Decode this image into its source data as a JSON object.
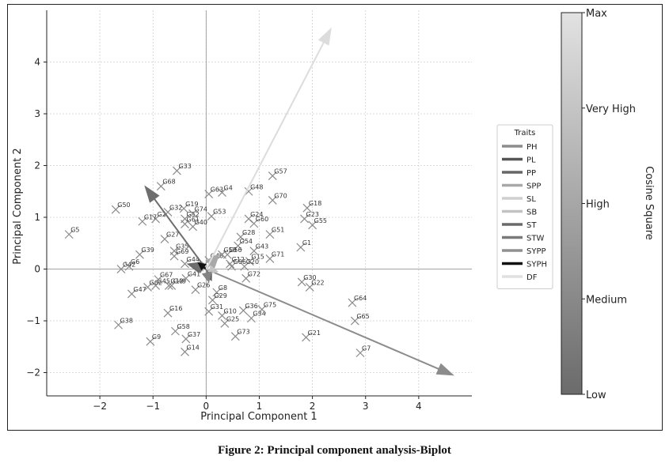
{
  "caption": "Figure 2: Principal component analysis-Biplot",
  "chart_data": {
    "type": "scatter",
    "title": "",
    "xlabel": "Principal Component 1",
    "ylabel": "Principal Component 2",
    "xlim": [
      -3,
      5
    ],
    "ylim": [
      -2.45,
      5
    ],
    "xticks": [
      -2,
      -1,
      0,
      1,
      2,
      3,
      4
    ],
    "yticks": [
      -2,
      -1,
      0,
      1,
      2,
      3,
      4
    ],
    "xtick_labels": [
      "−2",
      "−1",
      "0",
      "1",
      "2",
      "3",
      "4"
    ],
    "ytick_labels": [
      "−2",
      "−1",
      "0",
      "1",
      "2",
      "3",
      "4"
    ],
    "grid": true,
    "points": [
      {
        "label": "G1",
        "x": 1.78,
        "y": 0.42
      },
      {
        "label": "G2",
        "x": -0.95,
        "y": 0.97
      },
      {
        "label": "G4",
        "x": 0.3,
        "y": 1.48
      },
      {
        "label": "G5",
        "x": -2.58,
        "y": 0.67
      },
      {
        "label": "G6",
        "x": -1.45,
        "y": 0.05
      },
      {
        "label": "G7",
        "x": 2.9,
        "y": -1.62
      },
      {
        "label": "G8",
        "x": 0.2,
        "y": -0.45
      },
      {
        "label": "G9",
        "x": -1.05,
        "y": -1.4
      },
      {
        "label": "G10",
        "x": 0.3,
        "y": -0.9
      },
      {
        "label": "G12",
        "x": 0.45,
        "y": 0.1
      },
      {
        "label": "G13",
        "x": -0.7,
        "y": -0.32
      },
      {
        "label": "G14",
        "x": -0.4,
        "y": -1.6
      },
      {
        "label": "G15",
        "x": 0.82,
        "y": 0.15
      },
      {
        "label": "G16",
        "x": -0.72,
        "y": -0.85
      },
      {
        "label": "G17",
        "x": -1.2,
        "y": 0.92
      },
      {
        "label": "G18",
        "x": 1.9,
        "y": 1.18
      },
      {
        "label": "G19",
        "x": -0.42,
        "y": 1.17
      },
      {
        "label": "G20",
        "x": 0.72,
        "y": 0.05
      },
      {
        "label": "G21",
        "x": 1.88,
        "y": -1.32
      },
      {
        "label": "G22",
        "x": 1.95,
        "y": -0.35
      },
      {
        "label": "G23",
        "x": 1.85,
        "y": 0.97
      },
      {
        "label": "G24",
        "x": 0.8,
        "y": 0.97
      },
      {
        "label": "G25",
        "x": 0.35,
        "y": -1.05
      },
      {
        "label": "G26",
        "x": -0.2,
        "y": -0.4
      },
      {
        "label": "G27",
        "x": -0.78,
        "y": 0.58
      },
      {
        "label": "G28",
        "x": 0.65,
        "y": 0.62
      },
      {
        "label": "G29",
        "x": 0.12,
        "y": -0.6
      },
      {
        "label": "G30",
        "x": 1.8,
        "y": -0.25
      },
      {
        "label": "G31",
        "x": 0.05,
        "y": -0.82
      },
      {
        "label": "G32",
        "x": -0.72,
        "y": 1.1
      },
      {
        "label": "G33",
        "x": -0.55,
        "y": 1.9
      },
      {
        "label": "G34",
        "x": 0.85,
        "y": -0.95
      },
      {
        "label": "G35",
        "x": -0.6,
        "y": 0.35
      },
      {
        "label": "G36",
        "x": 0.7,
        "y": -0.8
      },
      {
        "label": "G37",
        "x": -0.38,
        "y": -1.35
      },
      {
        "label": "G38",
        "x": -1.65,
        "y": -1.08
      },
      {
        "label": "G39",
        "x": -1.25,
        "y": 0.28
      },
      {
        "label": "G40",
        "x": -0.25,
        "y": 0.82
      },
      {
        "label": "G41",
        "x": -0.38,
        "y": -0.18
      },
      {
        "label": "G42",
        "x": -1.6,
        "y": 0.0
      },
      {
        "label": "G43",
        "x": 0.9,
        "y": 0.35
      },
      {
        "label": "G44",
        "x": -0.4,
        "y": 0.1
      },
      {
        "label": "G45",
        "x": -0.95,
        "y": -0.32
      },
      {
        "label": "G46",
        "x": 0.05,
        "y": 0.17
      },
      {
        "label": "G47",
        "x": -1.4,
        "y": -0.48
      },
      {
        "label": "G48",
        "x": 0.8,
        "y": 1.5
      },
      {
        "label": "G49",
        "x": -0.65,
        "y": -0.32
      },
      {
        "label": "G50",
        "x": -1.7,
        "y": 1.15
      },
      {
        "label": "G51",
        "x": 1.2,
        "y": 0.67
      },
      {
        "label": "G52",
        "x": -0.4,
        "y": 0.97
      },
      {
        "label": "G53",
        "x": 0.1,
        "y": 1.02
      },
      {
        "label": "G54",
        "x": 0.6,
        "y": 0.45
      },
      {
        "label": "G55",
        "x": 2.0,
        "y": 0.85
      },
      {
        "label": "G56",
        "x": 0.4,
        "y": 0.28
      },
      {
        "label": "G57",
        "x": 1.25,
        "y": 1.8
      },
      {
        "label": "G58",
        "x": -0.58,
        "y": -1.2
      },
      {
        "label": "G59",
        "x": 0.3,
        "y": 0.28
      },
      {
        "label": "G60",
        "x": 0.9,
        "y": 0.88
      },
      {
        "label": "G61",
        "x": -0.4,
        "y": 0.87
      },
      {
        "label": "G62",
        "x": -1.1,
        "y": -0.35
      },
      {
        "label": "G63",
        "x": 0.05,
        "y": 1.45
      },
      {
        "label": "G64",
        "x": 2.75,
        "y": -0.65
      },
      {
        "label": "G65",
        "x": 2.8,
        "y": -1.0
      },
      {
        "label": "G66",
        "x": 0.48,
        "y": 0.05
      },
      {
        "label": "G67",
        "x": -0.9,
        "y": -0.2
      },
      {
        "label": "G68",
        "x": -0.85,
        "y": 1.6
      },
      {
        "label": "G69",
        "x": -0.6,
        "y": 0.25
      },
      {
        "label": "G70",
        "x": 1.25,
        "y": 1.33
      },
      {
        "label": "G71",
        "x": 1.2,
        "y": 0.2
      },
      {
        "label": "G72",
        "x": 0.75,
        "y": -0.18
      },
      {
        "label": "G73",
        "x": 0.55,
        "y": -1.3
      },
      {
        "label": "G74",
        "x": -0.25,
        "y": 1.07
      },
      {
        "label": "G75",
        "x": 1.05,
        "y": -0.78
      }
    ],
    "vectors": [
      {
        "name": "PH",
        "x": 4.65,
        "y": -2.05,
        "color": "#8c8c8c"
      },
      {
        "name": "PL",
        "x": -1.15,
        "y": 1.6,
        "color": "#6e6e6e"
      },
      {
        "name": "PP",
        "x": 0.1,
        "y": -0.22,
        "color": "#5e5e5e"
      },
      {
        "name": "SPP",
        "x": 0.25,
        "y": 0.3,
        "color": "#a8a8a8"
      },
      {
        "name": "SL",
        "x": 0.22,
        "y": -0.05,
        "color": "#c4c4c4"
      },
      {
        "name": "SB",
        "x": -0.15,
        "y": 0.05,
        "color": "#bbbbbb"
      },
      {
        "name": "ST",
        "x": -0.35,
        "y": 0.1,
        "color": "#6a6a6a"
      },
      {
        "name": "STW",
        "x": -0.25,
        "y": 0.08,
        "color": "#6f6f6f"
      },
      {
        "name": "SYPP",
        "x": 0.05,
        "y": -0.25,
        "color": "#848484"
      },
      {
        "name": "SYPH",
        "x": -0.15,
        "y": 0.12,
        "color": "#111111"
      },
      {
        "name": "DF",
        "x": 2.35,
        "y": 4.65,
        "color": "#dcdcdc"
      }
    ],
    "legend": {
      "title": "Traits",
      "placement": "right",
      "entries": [
        {
          "name": "PH",
          "color": "#8c8c8c"
        },
        {
          "name": "PL",
          "color": "#555555"
        },
        {
          "name": "PP",
          "color": "#666666"
        },
        {
          "name": "SPP",
          "color": "#a8a8a8"
        },
        {
          "name": "SL",
          "color": "#cfcfcf"
        },
        {
          "name": "SB",
          "color": "#c2c2c2"
        },
        {
          "name": "ST",
          "color": "#6a6a6a"
        },
        {
          "name": "STW",
          "color": "#7a7a7a"
        },
        {
          "name": "SYPP",
          "color": "#909090"
        },
        {
          "name": "SYPH",
          "color": "#111111"
        },
        {
          "name": "DF",
          "color": "#e0e0e0"
        }
      ]
    },
    "colorbar": {
      "label": "Cosine Square",
      "ticks": [
        "Low",
        "Medium",
        "High",
        "Very High",
        "Max"
      ],
      "color_low": "#6b6b6b",
      "color_high": "#e2e2e2"
    }
  }
}
